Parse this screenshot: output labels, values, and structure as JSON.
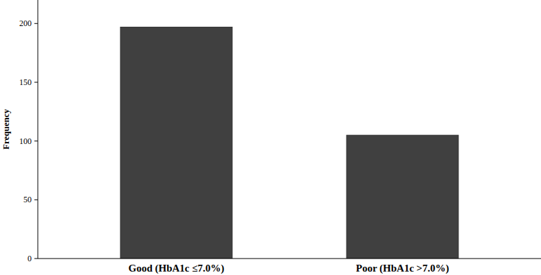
{
  "chart_data": {
    "type": "bar",
    "y_label": "Frequency",
    "categories": [
      "Good (HbA1c ≤7.0%)",
      "Poor (HbA1c >7.0%)"
    ],
    "values": [
      197,
      105
    ],
    "color": "#404040",
    "ylim": [
      0,
      220
    ],
    "yticks": [
      0,
      50,
      100,
      150,
      200
    ],
    "grid": false
  }
}
